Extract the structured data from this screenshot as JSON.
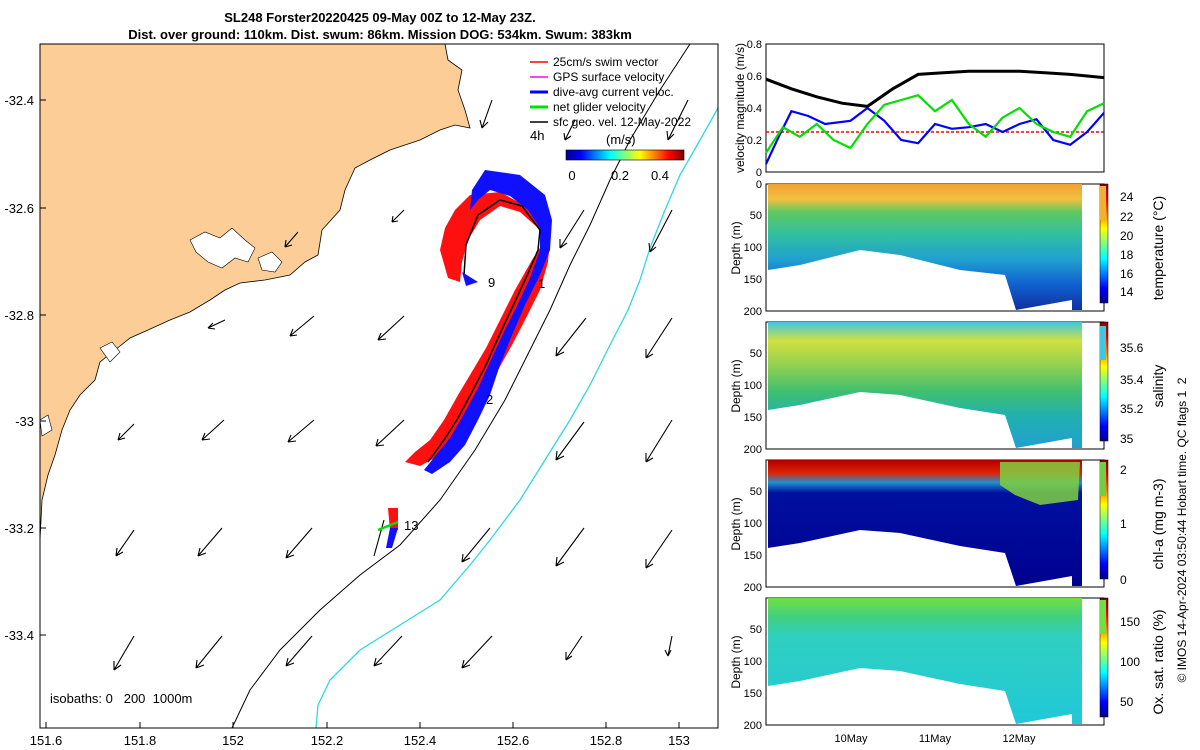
{
  "title": {
    "line1": "SL248 Forster20220425 09-May 00Z to 12-May 23Z.",
    "line2": "Dist. over ground: 110km. Dist. swum: 86km. Mission DOG: 534km. Swum: 383km"
  },
  "map": {
    "x_ticks": [
      "151.6",
      "151.8",
      "152",
      "152.2",
      "152.4",
      "152.6",
      "152.8",
      "153"
    ],
    "y_ticks": [
      "-32.4",
      "-32.6",
      "-32.8",
      "-33",
      "-33.2",
      "-33.4"
    ],
    "legend": [
      {
        "label": "25cm/s swim vector",
        "color": "#ff0000"
      },
      {
        "label": "GPS surface velocity",
        "color": "#ff00ff"
      },
      {
        "label": "dive-avg current veloc.",
        "color": "#0000ff"
      },
      {
        "label": "net glider velocity",
        "color": "#00e000"
      },
      {
        "label": "sfc geo. vel. 12-May-2022",
        "color": "#000000"
      }
    ],
    "colorbar": {
      "label": "(m/s)",
      "ticks": [
        "0",
        "0.2",
        "0.4"
      ],
      "prefix": "4h"
    },
    "track_labels": [
      "9",
      "1",
      "2",
      "13"
    ],
    "isobaths_text": "isobaths: 0   200  1000m",
    "land_color": "#fccd96"
  },
  "velocity_panel": {
    "ylabel": "velocity magnitude (m/s)",
    "y_ticks": [
      "0",
      "0.2",
      "0.4",
      "0.6",
      "0.8"
    ]
  },
  "depth_panels": [
    {
      "ylabel": "Depth (m)",
      "cblabel": "temperature (°C)",
      "cb_ticks": [
        "24",
        "22",
        "20",
        "18",
        "16",
        "14"
      ]
    },
    {
      "ylabel": "Depth (m)",
      "cblabel": "salinity",
      "cb_ticks": [
        "35.6",
        "35.4",
        "35.2",
        "35"
      ]
    },
    {
      "ylabel": "Depth (m)",
      "cblabel": "chl-a (mg m-3)",
      "cb_ticks": [
        "2",
        "1",
        "0"
      ]
    },
    {
      "ylabel": "Depth (m)",
      "cblabel": "Ox. sat. ratio (%)",
      "cb_ticks": [
        "150",
        "100",
        "50"
      ]
    }
  ],
  "depth_ticks": [
    "0",
    "50",
    "100",
    "150",
    "200"
  ],
  "time_ticks": [
    "10May",
    "11May",
    "12May"
  ],
  "side_note": "© IMOS 14-Apr-2024 03:50:44 Hobart time. QC flags 1  2",
  "chart_data": [
    {
      "type": "line",
      "title": "",
      "ylabel": "velocity magnitude (m/s)",
      "ylim": [
        0,
        0.8
      ],
      "xlabel": "",
      "x_range_days": [
        9.0,
        13.0
      ],
      "series": [
        {
          "name": "sfc geo. vel.",
          "color": "#000000",
          "x": [
            9.0,
            9.3,
            9.6,
            9.9,
            10.2,
            10.5,
            10.8,
            11.1,
            11.4,
            11.7,
            12.0,
            12.3,
            12.6,
            13.0
          ],
          "values": [
            0.58,
            0.52,
            0.47,
            0.43,
            0.41,
            0.52,
            0.61,
            0.62,
            0.63,
            0.63,
            0.63,
            0.62,
            0.61,
            0.59
          ]
        },
        {
          "name": "25cm/s swim vector",
          "color": "#ff0000",
          "x": [
            9.0,
            13.0
          ],
          "values": [
            0.25,
            0.25
          ]
        },
        {
          "name": "dive-avg current veloc.",
          "color": "#0000ff",
          "x": [
            9.0,
            9.15,
            9.3,
            9.5,
            9.7,
            10.0,
            10.2,
            10.4,
            10.6,
            10.8,
            11.0,
            11.2,
            11.4,
            11.6,
            11.8,
            12.0,
            12.2,
            12.4,
            12.6,
            12.8,
            13.0
          ],
          "values": [
            0.05,
            0.22,
            0.38,
            0.35,
            0.3,
            0.32,
            0.4,
            0.32,
            0.2,
            0.18,
            0.3,
            0.27,
            0.28,
            0.3,
            0.25,
            0.3,
            0.33,
            0.2,
            0.17,
            0.25,
            0.37
          ]
        },
        {
          "name": "net glider velocity",
          "color": "#00e000",
          "x": [
            9.0,
            9.2,
            9.4,
            9.6,
            9.8,
            10.0,
            10.2,
            10.4,
            10.6,
            10.8,
            11.0,
            11.2,
            11.4,
            11.6,
            11.8,
            12.0,
            12.2,
            12.4,
            12.6,
            12.8,
            13.0
          ],
          "values": [
            0.12,
            0.28,
            0.22,
            0.3,
            0.2,
            0.15,
            0.3,
            0.42,
            0.45,
            0.48,
            0.38,
            0.45,
            0.3,
            0.22,
            0.34,
            0.4,
            0.3,
            0.25,
            0.22,
            0.38,
            0.43
          ]
        }
      ]
    },
    {
      "type": "heatmap",
      "ylabel": "Depth (m)",
      "ylim": [
        200,
        0
      ],
      "cblabel": "temperature (°C)",
      "clim": [
        13,
        25
      ]
    },
    {
      "type": "heatmap",
      "ylabel": "Depth (m)",
      "ylim": [
        200,
        0
      ],
      "cblabel": "salinity",
      "clim": [
        34.95,
        35.7
      ]
    },
    {
      "type": "heatmap",
      "ylabel": "Depth (m)",
      "ylim": [
        200,
        0
      ],
      "cblabel": "chl-a (mg m-3)",
      "clim": [
        0,
        2
      ]
    },
    {
      "type": "heatmap",
      "ylabel": "Depth (m)",
      "ylim": [
        200,
        0
      ],
      "cblabel": "Ox. sat. ratio (%)",
      "clim": [
        20,
        175
      ]
    }
  ]
}
